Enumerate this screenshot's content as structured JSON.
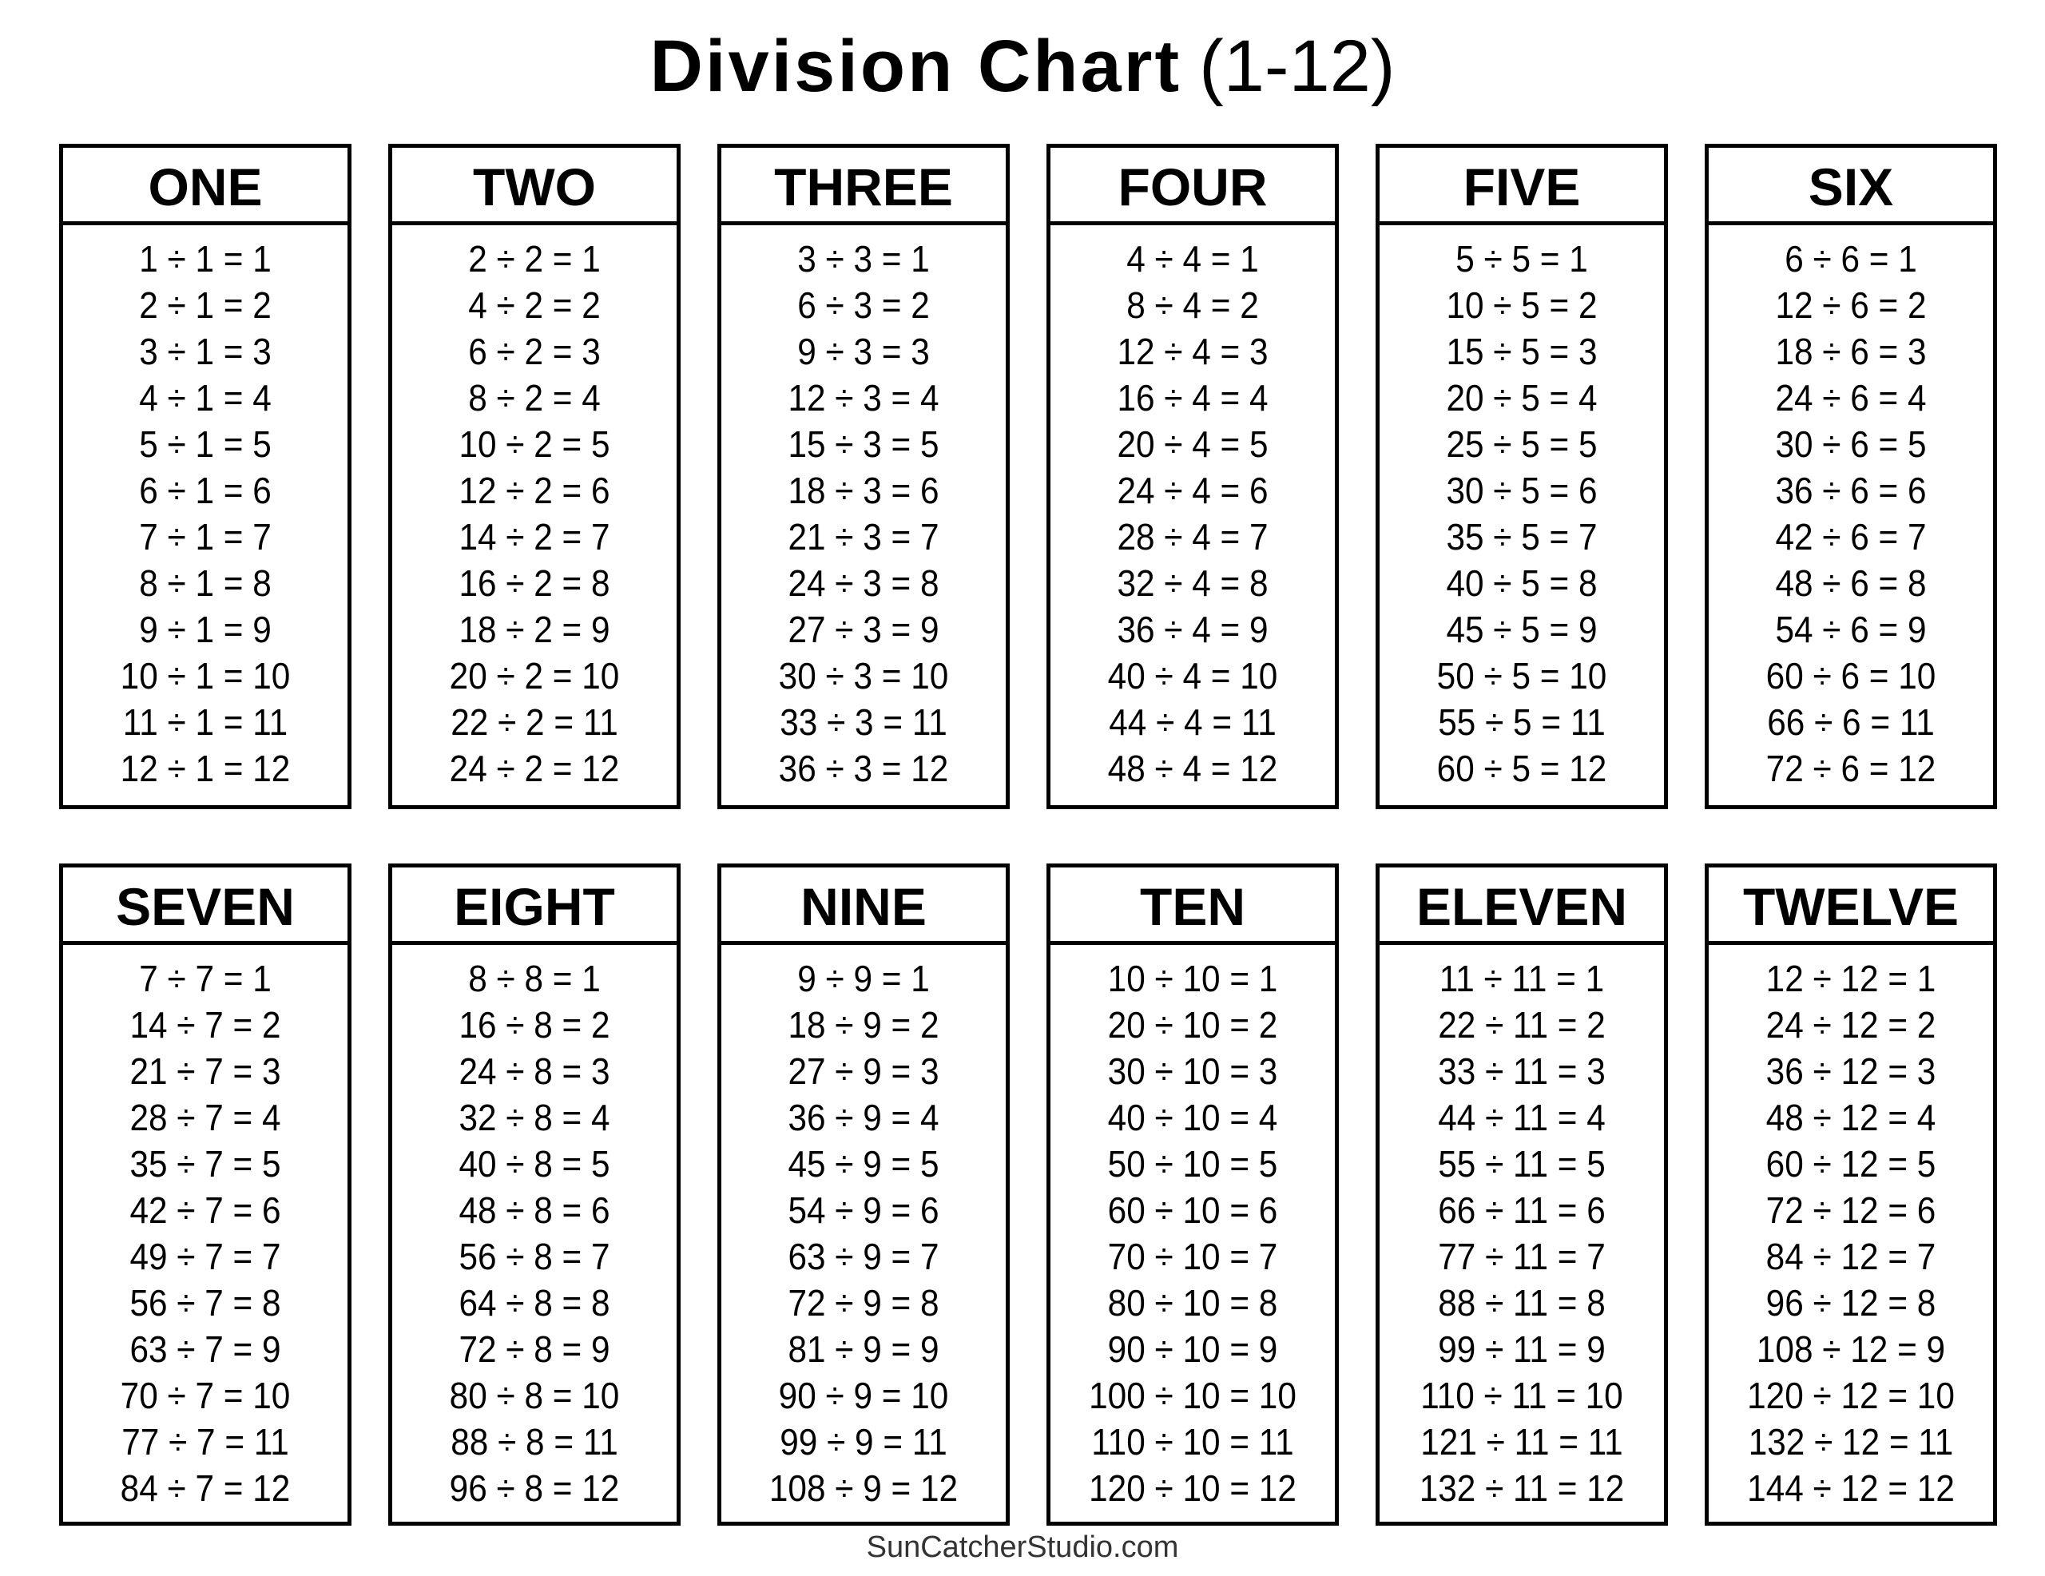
{
  "title": {
    "main": "Division Chart",
    "sub": "(1-12)"
  },
  "footer": "SunCatcherStudio.com",
  "tables": [
    {
      "heading": "ONE",
      "rows": [
        "1 ÷ 1 = 1",
        "2 ÷ 1 = 2",
        "3 ÷ 1 = 3",
        "4 ÷ 1 = 4",
        "5 ÷ 1 = 5",
        "6 ÷ 1 = 6",
        "7 ÷ 1 = 7",
        "8 ÷ 1 = 8",
        "9 ÷ 1 = 9",
        "10 ÷ 1 = 10",
        "11 ÷ 1 = 11",
        "12 ÷ 1 = 12"
      ]
    },
    {
      "heading": "TWO",
      "rows": [
        "2 ÷ 2 = 1",
        "4 ÷ 2 = 2",
        "6 ÷ 2 = 3",
        "8 ÷ 2 = 4",
        "10 ÷ 2 = 5",
        "12 ÷ 2 = 6",
        "14 ÷ 2 = 7",
        "16 ÷ 2 = 8",
        "18 ÷ 2 = 9",
        "20 ÷ 2 = 10",
        "22 ÷ 2 = 11",
        "24 ÷ 2 = 12"
      ]
    },
    {
      "heading": "THREE",
      "rows": [
        "3 ÷ 3 = 1",
        "6 ÷ 3 = 2",
        "9 ÷ 3 = 3",
        "12 ÷ 3 = 4",
        "15 ÷ 3 = 5",
        "18 ÷ 3 = 6",
        "21 ÷ 3 = 7",
        "24 ÷ 3 = 8",
        "27 ÷ 3 = 9",
        "30 ÷ 3 = 10",
        "33 ÷ 3 = 11",
        "36 ÷ 3 = 12"
      ]
    },
    {
      "heading": "FOUR",
      "rows": [
        "4 ÷ 4 = 1",
        "8 ÷ 4 = 2",
        "12 ÷ 4 = 3",
        "16 ÷ 4 = 4",
        "20 ÷ 4 = 5",
        "24 ÷ 4 = 6",
        "28 ÷ 4 = 7",
        "32 ÷ 4 = 8",
        "36 ÷ 4 = 9",
        "40 ÷ 4 = 10",
        "44 ÷ 4 = 11",
        "48 ÷ 4 = 12"
      ]
    },
    {
      "heading": "FIVE",
      "rows": [
        "5 ÷ 5 = 1",
        "10 ÷ 5 = 2",
        "15 ÷ 5 = 3",
        "20 ÷ 5 = 4",
        "25 ÷ 5 = 5",
        "30 ÷ 5 = 6",
        "35 ÷ 5 = 7",
        "40 ÷ 5 = 8",
        "45 ÷ 5 = 9",
        "50 ÷ 5 = 10",
        "55 ÷ 5 = 11",
        "60 ÷ 5 = 12"
      ]
    },
    {
      "heading": "SIX",
      "rows": [
        "6 ÷ 6 = 1",
        "12 ÷ 6 = 2",
        "18 ÷ 6 = 3",
        "24 ÷ 6 = 4",
        "30 ÷ 6 = 5",
        "36 ÷ 6 = 6",
        "42 ÷ 6 = 7",
        "48 ÷ 6 = 8",
        "54 ÷ 6 = 9",
        "60 ÷ 6 = 10",
        "66 ÷ 6 = 11",
        "72 ÷ 6 = 12"
      ]
    },
    {
      "heading": "SEVEN",
      "rows": [
        "7 ÷ 7 = 1",
        "14 ÷ 7 = 2",
        "21 ÷ 7 = 3",
        "28 ÷ 7 = 4",
        "35 ÷ 7 = 5",
        "42 ÷ 7 = 6",
        "49 ÷ 7 = 7",
        "56 ÷ 7 = 8",
        "63 ÷ 7 = 9",
        "70 ÷ 7 = 10",
        "77 ÷ 7 = 11",
        "84 ÷ 7 = 12"
      ]
    },
    {
      "heading": "EIGHT",
      "rows": [
        "8 ÷ 8 = 1",
        "16 ÷ 8 = 2",
        "24 ÷ 8 = 3",
        "32 ÷ 8 = 4",
        "40 ÷ 8 = 5",
        "48 ÷ 8 = 6",
        "56 ÷ 8 = 7",
        "64 ÷ 8 = 8",
        "72 ÷ 8 = 9",
        "80 ÷ 8 = 10",
        "88 ÷ 8 = 11",
        "96 ÷ 8 = 12"
      ]
    },
    {
      "heading": "NINE",
      "rows": [
        "9 ÷ 9 = 1",
        "18 ÷ 9 = 2",
        "27 ÷ 9 = 3",
        "36 ÷ 9 = 4",
        "45 ÷ 9 = 5",
        "54 ÷ 9 = 6",
        "63 ÷ 9 = 7",
        "72 ÷ 9 = 8",
        "81 ÷ 9 = 9",
        "90 ÷ 9 = 10",
        "99 ÷ 9 = 11",
        "108 ÷ 9 = 12"
      ]
    },
    {
      "heading": "TEN",
      "rows": [
        "10 ÷ 10 = 1",
        "20 ÷ 10 = 2",
        "30 ÷ 10 = 3",
        "40 ÷ 10 = 4",
        "50 ÷ 10 = 5",
        "60 ÷ 10 = 6",
        "70 ÷ 10 = 7",
        "80 ÷ 10 = 8",
        "90 ÷ 10 = 9",
        "100 ÷ 10 = 10",
        "110 ÷ 10 = 11",
        "120 ÷ 10 = 12"
      ]
    },
    {
      "heading": "ELEVEN",
      "rows": [
        "11 ÷ 11 = 1",
        "22 ÷ 11 = 2",
        "33 ÷ 11 = 3",
        "44 ÷ 11 = 4",
        "55 ÷ 11 = 5",
        "66 ÷ 11 = 6",
        "77 ÷ 11 = 7",
        "88 ÷ 11 = 8",
        "99 ÷ 11 = 9",
        "110 ÷ 11 = 10",
        "121 ÷ 11 = 11",
        "132 ÷ 11 = 12"
      ]
    },
    {
      "heading": "TWELVE",
      "rows": [
        "12 ÷ 12 = 1",
        "24 ÷ 12 = 2",
        "36 ÷ 12 = 3",
        "48 ÷ 12 = 4",
        "60 ÷ 12 = 5",
        "72 ÷ 12 = 6",
        "84 ÷ 12 = 7",
        "96 ÷ 12 = 8",
        "108 ÷ 12 = 9",
        "120 ÷ 12 = 10",
        "132 ÷ 12 = 11",
        "144 ÷ 12 = 12"
      ]
    }
  ]
}
